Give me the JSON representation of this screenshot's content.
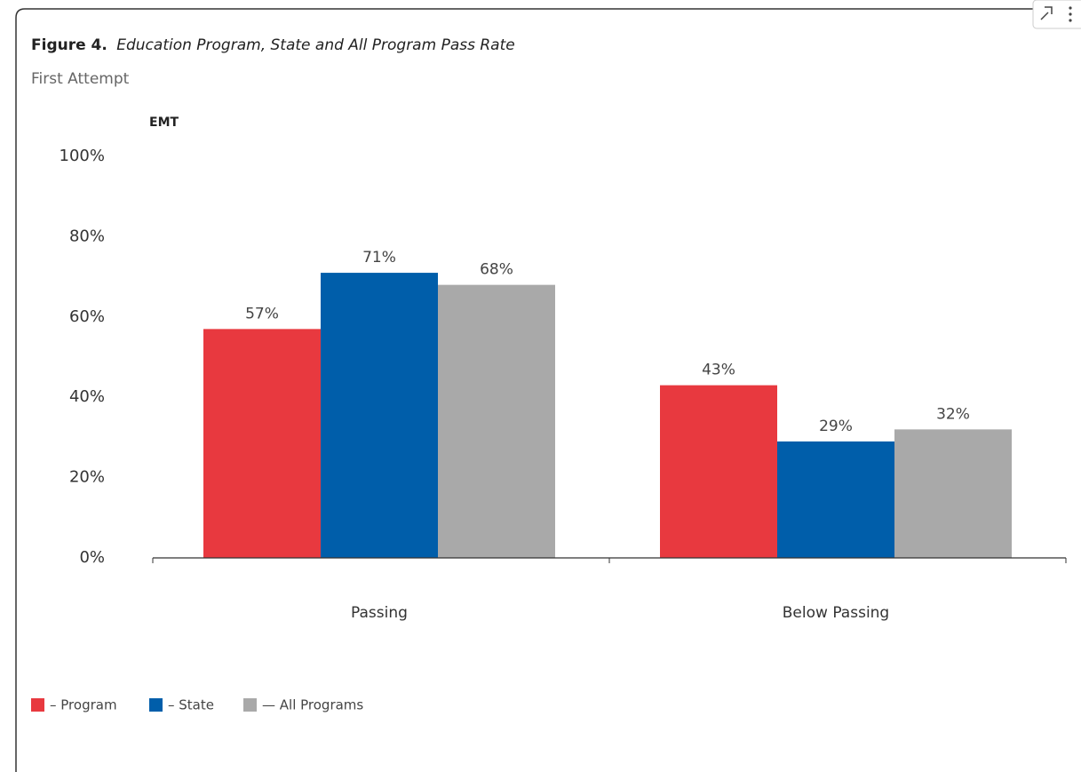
{
  "chart_data": {
    "type": "bar",
    "title_label": "Figure 4.",
    "title": "Education Program, State and All Program Pass Rate",
    "subtitle": "First Attempt",
    "y_label": "EMT",
    "categories": [
      "Passing",
      "Below Passing"
    ],
    "series": [
      {
        "name": "– Program",
        "color": "#e8393f",
        "values": [
          57,
          43
        ],
        "value_labels": [
          "57%",
          "43%"
        ]
      },
      {
        "name": "– State",
        "color": "#005eaa",
        "values": [
          71,
          29
        ],
        "value_labels": [
          "71%",
          "29%"
        ]
      },
      {
        "name": "— All Programs",
        "color": "#a9a9a9",
        "values": [
          68,
          32
        ],
        "value_labels": [
          "68%",
          "32%"
        ]
      }
    ],
    "ylim": [
      0,
      100
    ],
    "yticks": [
      {
        "value": 0,
        "label": "0%"
      },
      {
        "value": 20,
        "label": "20%"
      },
      {
        "value": 40,
        "label": "40%"
      },
      {
        "value": 60,
        "label": "60%"
      },
      {
        "value": 80,
        "label": "80%"
      },
      {
        "value": 100,
        "label": "100%"
      }
    ],
    "grid": false,
    "legend": "bottom-left"
  }
}
